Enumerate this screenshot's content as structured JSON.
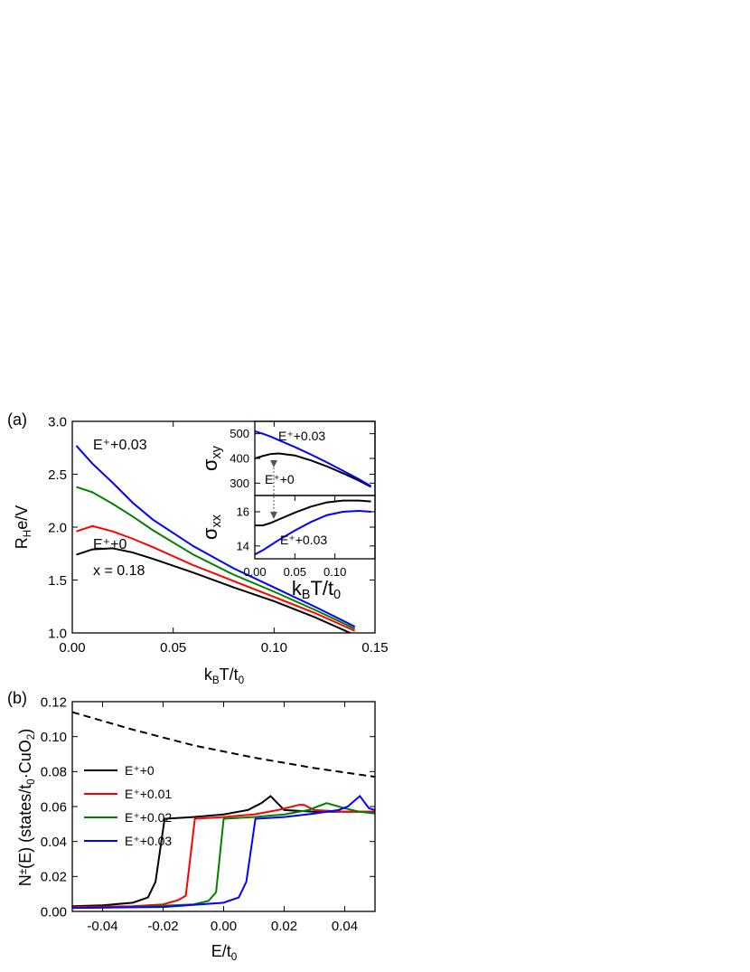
{
  "chart_data": [
    {
      "type": "line",
      "label": "(a)",
      "xlabel": [
        {
          "text": "k"
        },
        {
          "text": "B",
          "script": "sub"
        },
        {
          "text": "T/t"
        },
        {
          "text": "0",
          "script": "sub"
        }
      ],
      "ylabel": [
        {
          "text": "R"
        },
        {
          "text": "H",
          "script": "sub"
        },
        {
          "text": "e/V"
        }
      ],
      "xlim": [
        0,
        0.15
      ],
      "ylim": [
        1.0,
        3.0
      ],
      "xticks": [
        {
          "value": 0,
          "label": "0.00"
        },
        0.05,
        {
          "value": 0.1,
          "label": "0.10"
        },
        0.15
      ],
      "yticks": [
        {
          "value": 1,
          "label": "1.0"
        },
        1.5,
        {
          "value": 2,
          "label": "2.0"
        },
        2.5,
        {
          "value": 3,
          "label": "3.0"
        }
      ],
      "series": [
        {
          "color": "#000000",
          "x": [
            0.002,
            0.01,
            0.02,
            0.03,
            0.04,
            0.06,
            0.08,
            0.1,
            0.12,
            0.14
          ],
          "values": [
            1.74,
            1.79,
            1.8,
            1.76,
            1.7,
            1.57,
            1.43,
            1.3,
            1.15,
            0.98
          ]
        },
        {
          "color": "#ff0000",
          "x": [
            0.002,
            0.01,
            0.02,
            0.03,
            0.04,
            0.06,
            0.08,
            0.1,
            0.12,
            0.14
          ],
          "values": [
            1.96,
            2.01,
            1.96,
            1.89,
            1.81,
            1.64,
            1.49,
            1.34,
            1.19,
            1.02
          ]
        },
        {
          "color": "#008000",
          "x": [
            0.002,
            0.01,
            0.02,
            0.03,
            0.04,
            0.06,
            0.08,
            0.1,
            0.12,
            0.14
          ],
          "values": [
            2.38,
            2.33,
            2.22,
            2.1,
            1.97,
            1.74,
            1.55,
            1.39,
            1.22,
            1.04
          ]
        },
        {
          "color": "#0000ff",
          "x": [
            0.002,
            0.01,
            0.02,
            0.03,
            0.04,
            0.06,
            0.08,
            0.1,
            0.12,
            0.14
          ],
          "values": [
            2.77,
            2.6,
            2.42,
            2.23,
            2.07,
            1.82,
            1.61,
            1.43,
            1.25,
            1.06
          ]
        }
      ],
      "annotations": [
        {
          "text": "E⁺+0.03",
          "color": "#0000ff"
        },
        {
          "text": "E⁺+0",
          "color": "#000000"
        },
        {
          "text": "x = 0.18",
          "color": "#000000"
        }
      ]
    },
    {
      "type": "line",
      "ylabel": [
        {
          "text": "σ"
        },
        {
          "text": "xy",
          "script": "sub"
        }
      ],
      "xlim": [
        0,
        0.15
      ],
      "ylim": [
        250,
        550
      ],
      "yticks": [
        300,
        400,
        500
      ],
      "series": [
        {
          "color": "#000000",
          "x": [
            0,
            0.01,
            0.02,
            0.03,
            0.05,
            0.07,
            0.09,
            0.11,
            0.13,
            0.145
          ],
          "values": [
            400,
            410,
            418,
            420,
            412,
            392,
            368,
            340,
            310,
            285
          ]
        },
        {
          "color": "#0000ff",
          "x": [
            0,
            0.01,
            0.02,
            0.03,
            0.05,
            0.07,
            0.09,
            0.11,
            0.13,
            0.145
          ],
          "values": [
            510,
            500,
            488,
            474,
            446,
            416,
            384,
            350,
            316,
            288
          ]
        }
      ],
      "annotations": [
        {
          "text": "E⁺+0.03",
          "color": "#0000ff"
        },
        {
          "text": "E⁺+0",
          "color": "#000000"
        }
      ]
    },
    {
      "type": "line",
      "xlabel": [
        {
          "text": "k"
        },
        {
          "text": "B",
          "script": "sub"
        },
        {
          "text": "T/t"
        },
        {
          "text": "0",
          "script": "sub"
        }
      ],
      "ylabel": [
        {
          "text": "σ"
        },
        {
          "text": "xx",
          "script": "sub"
        }
      ],
      "xlim": [
        0,
        0.15
      ],
      "ylim": [
        13.25,
        16.95
      ],
      "xticks": [
        {
          "value": 0,
          "label": "0.00"
        },
        0.05,
        {
          "value": 0.1,
          "label": "0.10"
        }
      ],
      "yticks": [
        14,
        16
      ],
      "series": [
        {
          "color": "#000000",
          "x": [
            0,
            0.01,
            0.02,
            0.03,
            0.05,
            0.07,
            0.09,
            0.11,
            0.13,
            0.145
          ],
          "values": [
            15.2,
            15.2,
            15.35,
            15.55,
            15.95,
            16.3,
            16.55,
            16.65,
            16.65,
            16.6
          ]
        },
        {
          "color": "#0000ff",
          "x": [
            0,
            0.01,
            0.02,
            0.03,
            0.05,
            0.07,
            0.09,
            0.11,
            0.13,
            0.145
          ],
          "values": [
            13.5,
            13.75,
            14.05,
            14.35,
            14.9,
            15.4,
            15.8,
            16.0,
            16.05,
            16.0
          ]
        }
      ],
      "annotations": [
        {
          "text": "E⁺+0.03",
          "color": "#0000ff"
        }
      ]
    },
    {
      "type": "line",
      "label": "(b)",
      "xlabel": [
        {
          "text": "E/t"
        },
        {
          "text": "0",
          "script": "sub"
        }
      ],
      "ylabel": [
        {
          "text": "N"
        },
        {
          "text": "±",
          "script": "sup"
        },
        {
          "text": "(E) (states/t"
        },
        {
          "text": "0",
          "script": "sub"
        },
        {
          "text": "·CuO"
        },
        {
          "text": "2",
          "script": "sub"
        },
        {
          "text": ")"
        }
      ],
      "xlim": [
        -0.05,
        0.05
      ],
      "ylim": [
        0,
        0.12
      ],
      "xticks": [
        -0.04,
        -0.02,
        {
          "value": 0,
          "label": "0.00"
        },
        0.02,
        0.04
      ],
      "yticks": [
        {
          "value": 0,
          "label": "0.00"
        },
        0.02,
        0.04,
        0.06,
        0.08,
        {
          "value": 0.1,
          "label": "0.10"
        },
        0.12
      ],
      "legend": "upper left",
      "series": [
        {
          "color": "#000000",
          "dash": true,
          "x": [
            -0.05,
            -0.03,
            -0.01,
            0.01,
            0.03,
            0.05
          ],
          "values": [
            0.114,
            0.104,
            0.095,
            0.088,
            0.082,
            0.077
          ]
        },
        {
          "name": "E⁺+0",
          "color": "#000000",
          "x": [
            -0.05,
            -0.04,
            -0.03,
            -0.025,
            -0.0225,
            -0.0195,
            -0.01,
            0,
            0.008,
            0.0125,
            0.0155,
            0.02,
            0.03,
            0.05
          ],
          "values": [
            0.003,
            0.0035,
            0.005,
            0.008,
            0.017,
            0.053,
            0.054,
            0.0555,
            0.058,
            0.062,
            0.066,
            0.058,
            0.057,
            0.057
          ]
        },
        {
          "name": "E⁺+0.01",
          "color": "#ff0000",
          "x": [
            -0.05,
            -0.03,
            -0.02,
            -0.015,
            -0.0125,
            -0.0095,
            0,
            0.01,
            0.018,
            0.025,
            0.0265,
            0.03,
            0.04,
            0.05
          ],
          "values": [
            0.0025,
            0.003,
            0.004,
            0.0065,
            0.009,
            0.053,
            0.054,
            0.0555,
            0.058,
            0.061,
            0.061,
            0.058,
            0.057,
            0.057
          ]
        },
        {
          "name": "E⁺+0.02",
          "color": "#008000",
          "x": [
            -0.05,
            -0.03,
            -0.01,
            -0.005,
            -0.0025,
            0,
            0.01,
            0.02,
            0.028,
            0.034,
            0.04,
            0.045,
            0.05
          ],
          "values": [
            0.002,
            0.0025,
            0.004,
            0.006,
            0.011,
            0.053,
            0.054,
            0.0555,
            0.058,
            0.062,
            0.059,
            0.057,
            0.056
          ]
        },
        {
          "name": "E⁺+0.03",
          "color": "#0000ff",
          "x": [
            -0.05,
            -0.02,
            0,
            0.005,
            0.0075,
            0.0105,
            0.02,
            0.03,
            0.038,
            0.041,
            0.045,
            0.048,
            0.05
          ],
          "values": [
            0.002,
            0.0025,
            0.005,
            0.008,
            0.017,
            0.053,
            0.054,
            0.056,
            0.058,
            0.06,
            0.066,
            0.059,
            0.058
          ]
        }
      ]
    }
  ]
}
